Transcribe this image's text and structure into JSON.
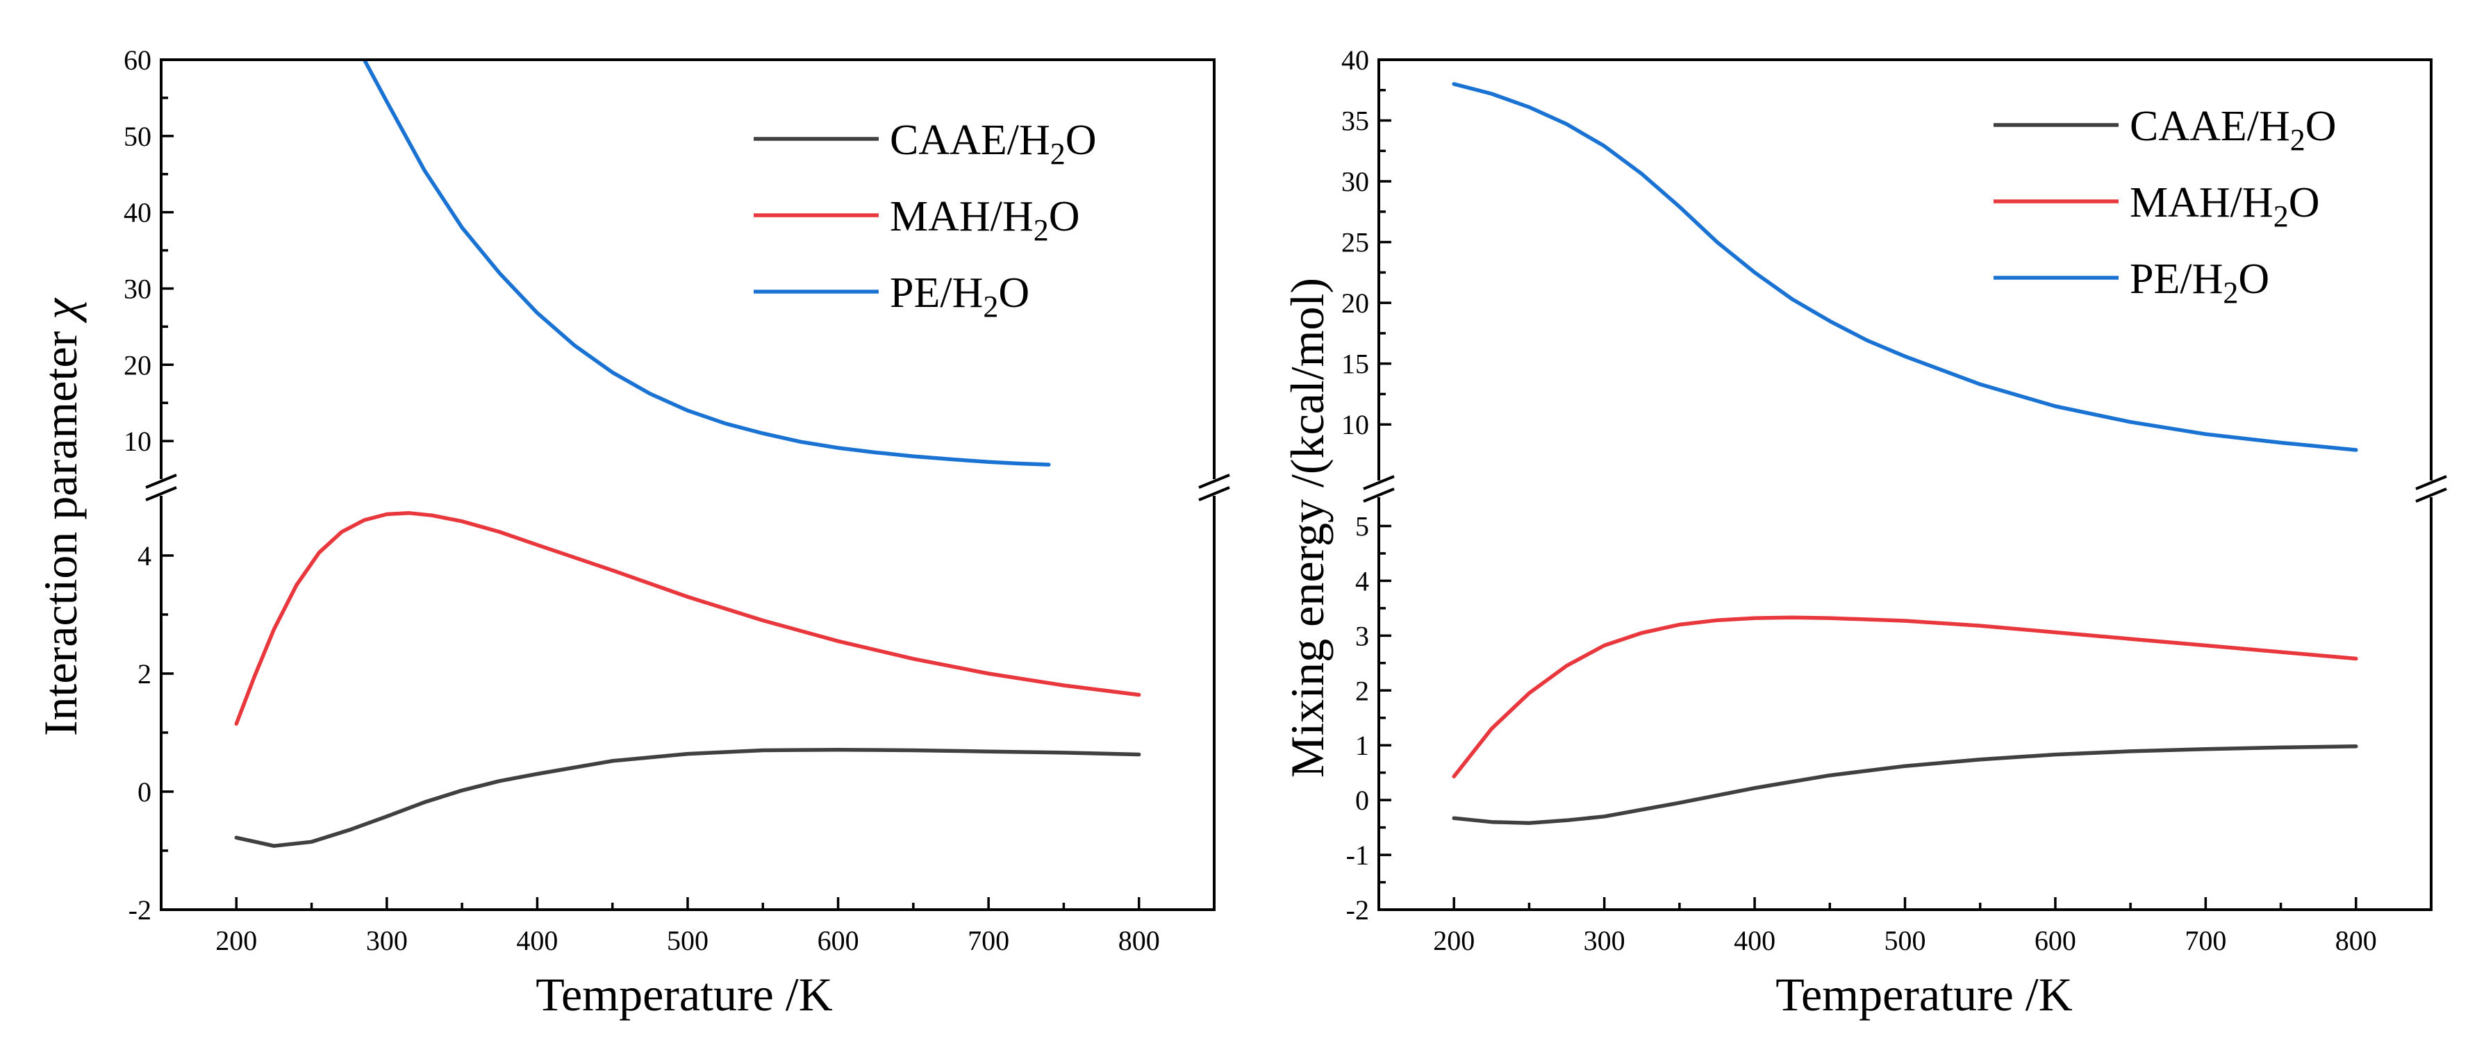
{
  "chart_data": [
    {
      "type": "line",
      "panel": "left",
      "xlabel": "Temperature /K",
      "ylabel_main": "Interaction parameter ",
      "ylabel_symbol": "χ",
      "xlim": [
        150,
        850
      ],
      "x_ticks": [
        "200",
        "300",
        "400",
        "500",
        "600",
        "700",
        "800"
      ],
      "y_axis_broken": true,
      "y_segments": [
        {
          "range": [
            -2,
            5
          ],
          "ticks": [
            "-2",
            "0",
            "2",
            "4"
          ]
        },
        {
          "range": [
            5,
            60
          ],
          "ticks": [
            "10",
            "20",
            "30",
            "40",
            "50",
            "60"
          ]
        }
      ],
      "legend_position": "top-right",
      "series": [
        {
          "name": "CAAE/H",
          "name_sub": "2",
          "name_tail": "O",
          "color": "#404040",
          "x": [
            200,
            225,
            250,
            275,
            300,
            325,
            350,
            375,
            400,
            450,
            500,
            550,
            600,
            650,
            700,
            750,
            800
          ],
          "y": [
            -0.78,
            -0.92,
            -0.85,
            -0.65,
            -0.42,
            -0.18,
            0.02,
            0.18,
            0.3,
            0.52,
            0.64,
            0.7,
            0.71,
            0.7,
            0.68,
            0.66,
            0.63
          ]
        },
        {
          "name": "MAH/H",
          "name_sub": "2",
          "name_tail": "O",
          "color": "#e8383d",
          "x": [
            200,
            212,
            225,
            240,
            255,
            270,
            285,
            300,
            315,
            330,
            350,
            375,
            400,
            450,
            500,
            550,
            600,
            650,
            700,
            750,
            800
          ],
          "y": [
            1.15,
            1.95,
            2.75,
            3.5,
            4.05,
            4.4,
            4.6,
            4.7,
            4.72,
            4.68,
            4.58,
            4.4,
            4.18,
            3.75,
            3.3,
            2.9,
            2.55,
            2.25,
            2.0,
            1.8,
            1.64
          ]
        },
        {
          "name": "PE/H",
          "name_sub": "2",
          "name_tail": "O",
          "color": "#1a73d3",
          "x": [
            285,
            300,
            325,
            350,
            375,
            400,
            425,
            450,
            475,
            500,
            525,
            550,
            575,
            600,
            625,
            650,
            675,
            700,
            720,
            740
          ],
          "y": [
            60.0,
            54.5,
            45.5,
            38.0,
            32.0,
            26.8,
            22.5,
            19.0,
            16.2,
            14.0,
            12.3,
            11.0,
            9.9,
            9.1,
            8.5,
            8.0,
            7.6,
            7.25,
            7.05,
            6.9
          ]
        }
      ]
    },
    {
      "type": "line",
      "panel": "right",
      "xlabel": "Temperature /K",
      "ylabel_main": "Mixing energy /(kcal/mol)",
      "ylabel_symbol": "",
      "xlim": [
        150,
        850
      ],
      "x_ticks": [
        "200",
        "300",
        "400",
        "500",
        "600",
        "700",
        "800"
      ],
      "y_axis_broken": true,
      "y_segments": [
        {
          "range": [
            -2,
            5.5
          ],
          "ticks": [
            "-2",
            "-1",
            "0",
            "1",
            "2",
            "3",
            "4",
            "5"
          ]
        },
        {
          "range": [
            5.5,
            40
          ],
          "ticks": [
            "10",
            "15",
            "20",
            "25",
            "30",
            "35",
            "40"
          ]
        }
      ],
      "legend_position": "top-right",
      "series": [
        {
          "name": "CAAE/H",
          "name_sub": "2",
          "name_tail": "O",
          "color": "#404040",
          "x": [
            200,
            225,
            250,
            275,
            300,
            350,
            400,
            450,
            500,
            550,
            600,
            650,
            700,
            750,
            800
          ],
          "y": [
            -0.33,
            -0.4,
            -0.42,
            -0.37,
            -0.3,
            -0.05,
            0.22,
            0.45,
            0.62,
            0.74,
            0.83,
            0.89,
            0.93,
            0.96,
            0.98
          ]
        },
        {
          "name": "MAH/H",
          "name_sub": "2",
          "name_tail": "O",
          "color": "#e8383d",
          "x": [
            200,
            225,
            250,
            275,
            300,
            325,
            350,
            375,
            400,
            425,
            450,
            500,
            550,
            600,
            650,
            700,
            750,
            800
          ],
          "y": [
            0.43,
            1.3,
            1.95,
            2.45,
            2.82,
            3.05,
            3.2,
            3.28,
            3.32,
            3.33,
            3.32,
            3.27,
            3.18,
            3.06,
            2.94,
            2.82,
            2.7,
            2.58
          ]
        },
        {
          "name": "PE/H",
          "name_sub": "2",
          "name_tail": "O",
          "color": "#1a73d3",
          "x": [
            200,
            225,
            250,
            275,
            300,
            325,
            350,
            375,
            400,
            425,
            450,
            475,
            500,
            550,
            600,
            650,
            700,
            750,
            800
          ],
          "y": [
            38.0,
            37.2,
            36.1,
            34.7,
            32.9,
            30.6,
            27.9,
            25.0,
            22.5,
            20.3,
            18.5,
            16.9,
            15.6,
            13.3,
            11.5,
            10.2,
            9.2,
            8.5,
            7.9
          ]
        }
      ]
    }
  ]
}
